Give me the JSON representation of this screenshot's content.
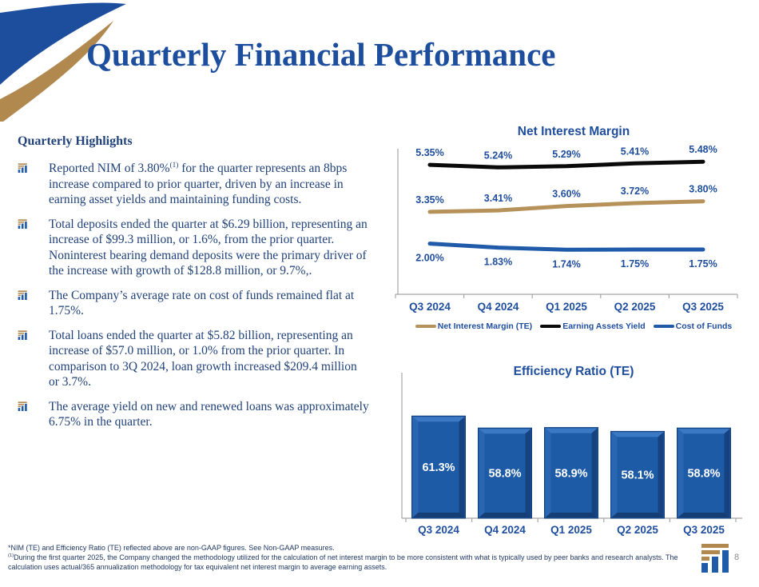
{
  "slide": {
    "title": "Quarterly Financial Performance"
  },
  "colors": {
    "title_blue": "#1D4E9E",
    "body_navy": "#21427A",
    "chart_label_blue": "#1F4E9E",
    "gold": "#B6925A",
    "logo_gold": "#B1894F",
    "logo_blue": "#1F5BA8",
    "bar_blue": "#1E5BA7",
    "axis_gray": "#A6A6A6"
  },
  "highlights": {
    "heading": "Quarterly Highlights",
    "bullets": [
      {
        "pre": "Reported NIM of 3.80%",
        "sup": "(1)",
        "post": " for the quarter represents an 8bps increase compared to prior quarter, driven by an increase in earning asset yields and maintaining funding costs."
      },
      {
        "pre": "Total deposits ended the quarter at $6.29 billion, representing an increase of $99.3 million, or 1.6%, from the prior quarter. Noninterest bearing demand deposits were the primary driver of the increase with growth of $128.8 million, or 9.7%,.",
        "sup": "",
        "post": ""
      },
      {
        "pre": "The Company’s average rate on cost of funds remained flat at 1.75%.",
        "sup": "",
        "post": ""
      },
      {
        "pre": "Total loans ended the quarter at $5.82 billion, representing an increase of $57.0 million, or 1.0% from the prior quarter.  In comparison to 3Q 2024, loan growth increased $209.4 million or 3.7%.",
        "sup": "",
        "post": ""
      },
      {
        "pre": "The average yield on new and renewed loans was approximately 6.75% in the quarter.",
        "sup": "",
        "post": ""
      }
    ]
  },
  "chart_data": [
    {
      "type": "line",
      "title": "Net Interest Margin",
      "categories": [
        "Q3 2024",
        "Q4 2024",
        "Q1 2025",
        "Q2 2025",
        "Q3 2025"
      ],
      "series": [
        {
          "name": "Net Interest Margin (TE)",
          "color": "#B6925A",
          "values": [
            3.35,
            3.41,
            3.6,
            3.72,
            3.8
          ],
          "labels": [
            "3.35%",
            "3.41%",
            "3.60%",
            "3.72%",
            "3.80%"
          ],
          "label_position": "above"
        },
        {
          "name": "Earning Assets Yield",
          "color": "#0A0A0A",
          "values": [
            5.35,
            5.24,
            5.29,
            5.41,
            5.48
          ],
          "labels": [
            "5.35%",
            "5.24%",
            "5.29%",
            "5.41%",
            "5.48%"
          ],
          "label_position": "above"
        },
        {
          "name": "Cost of Funds",
          "color": "#1F5BA8",
          "values": [
            2.0,
            1.83,
            1.74,
            1.75,
            1.75
          ],
          "labels": [
            "2.00%",
            "1.83%",
            "1.74%",
            "1.75%",
            "1.75%"
          ],
          "label_position": "below"
        }
      ],
      "ylim": [
        0.9,
        6.1
      ],
      "grid": false,
      "legend_position": "bottom"
    },
    {
      "type": "bar",
      "title": "Efficiency Ratio (TE)",
      "categories": [
        "Q3 2024",
        "Q4 2024",
        "Q1 2025",
        "Q2 2025",
        "Q3 2025"
      ],
      "values": [
        61.3,
        58.8,
        58.9,
        58.1,
        58.8
      ],
      "labels": [
        "61.3%",
        "58.8%",
        "58.9%",
        "58.1%",
        "58.8%"
      ],
      "ylim": [
        40,
        70
      ],
      "bar_color": "#1E5BA7",
      "label_color": "#FFFFFF",
      "grid": false
    }
  ],
  "footer": {
    "note1": "*NIM (TE) and Efficiency Ratio (TE) reflected above are non-GAAP figures.  See Non-GAAP measures.",
    "note2_sup": "(1)",
    "note2_text": "During the first quarter 2025, the Company changed the methodology utilized for the calculation of net interest margin to be more consistent with what is typically used by peer banks and research analysts. The calculation uses actual/365 annualization methodology for tax equivalent net interest margin to average earning assets.",
    "page_number": "8"
  }
}
